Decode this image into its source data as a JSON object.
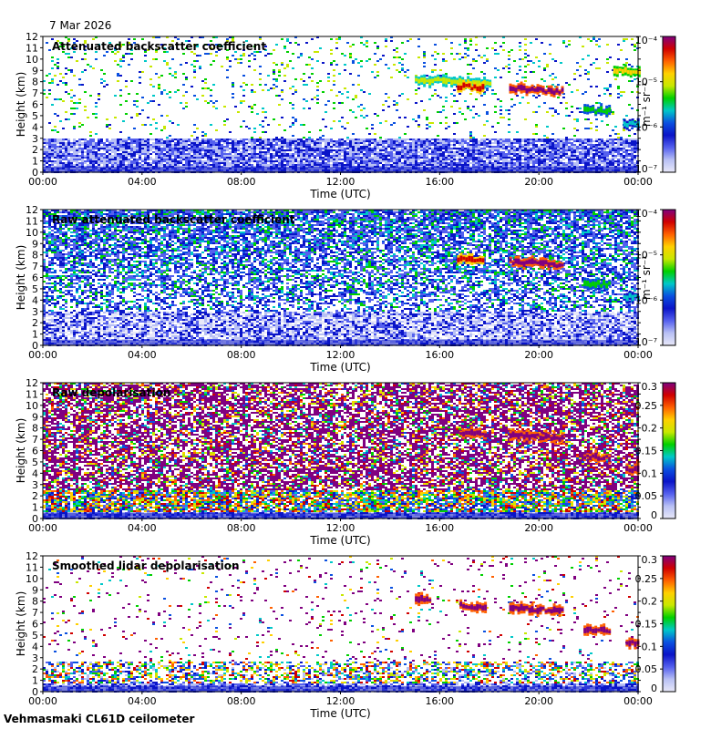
{
  "header": {
    "date": "7 Mar 2026"
  },
  "footer": {
    "instrument": "Vehmasmaki CL61D ceilometer"
  },
  "colors": {
    "jet": [
      "#e8e8f8",
      "#b8c0f4",
      "#5560ee",
      "#0a14c8",
      "#0a50e0",
      "#00c8c8",
      "#00d000",
      "#c8e800",
      "#ffd000",
      "#ff6000",
      "#d00000",
      "#800080"
    ],
    "panel_bg": "#ffffff"
  },
  "chart_data": [
    {
      "type": "heatmap",
      "title": "Attenuated backscatter coefficient",
      "xlabel": "Time (UTC)",
      "ylabel": "Height (km)",
      "xticks": [
        "00:00",
        "04:00",
        "08:00",
        "12:00",
        "16:00",
        "20:00",
        "00:00"
      ],
      "yticks": [
        "0",
        "1",
        "2",
        "3",
        "4",
        "5",
        "6",
        "7",
        "8",
        "9",
        "10",
        "11",
        "12"
      ],
      "ylim": [
        0,
        12
      ],
      "xlim_hours": [
        0,
        24
      ],
      "colorbar": {
        "scale": "log",
        "ticks": [
          "10⁻⁴",
          "10⁻⁵",
          "10⁻⁶",
          "10⁻⁷"
        ],
        "label": "m⁻¹ sr⁻¹",
        "range": [
          1e-07,
          0.0001
        ]
      },
      "noise": "sparse",
      "boundary_layer_top_km": 3.0,
      "cloud_layers": [
        {
          "t_start_h": 15.0,
          "t_end_h": 18.0,
          "h_km": 8.2,
          "value": 1e-05
        },
        {
          "t_start_h": 16.7,
          "t_end_h": 17.8,
          "h_km": 7.6,
          "value": 6e-05
        },
        {
          "t_start_h": 18.8,
          "t_end_h": 21.0,
          "h_km": 7.4,
          "value": 8e-05
        },
        {
          "t_start_h": 21.8,
          "t_end_h": 22.8,
          "h_km": 5.5,
          "value": 4e-06
        },
        {
          "t_start_h": 23.4,
          "t_end_h": 24.0,
          "h_km": 4.3,
          "value": 2e-06
        },
        {
          "t_start_h": 23.0,
          "t_end_h": 24.0,
          "h_km": 9.0,
          "value": 1.5e-05
        }
      ]
    },
    {
      "type": "heatmap",
      "title": "Raw attenuated backscatter coefficient",
      "xlabel": "Time (UTC)",
      "ylabel": "Height (km)",
      "xticks": [
        "00:00",
        "04:00",
        "08:00",
        "12:00",
        "16:00",
        "20:00",
        "00:00"
      ],
      "yticks": [
        "0",
        "1",
        "2",
        "3",
        "4",
        "5",
        "6",
        "7",
        "8",
        "9",
        "10",
        "11",
        "12"
      ],
      "ylim": [
        0,
        12
      ],
      "xlim_hours": [
        0,
        24
      ],
      "colorbar": {
        "scale": "log",
        "ticks": [
          "10⁻⁴",
          "10⁻⁵",
          "10⁻⁶",
          "10⁻⁷"
        ],
        "label": "m⁻¹ sr⁻¹",
        "range": [
          1e-07,
          0.0001
        ]
      },
      "noise": "dense",
      "boundary_layer_top_km": 3.0,
      "cloud_layers": [
        {
          "t_start_h": 16.7,
          "t_end_h": 17.8,
          "h_km": 7.6,
          "value": 6e-05
        },
        {
          "t_start_h": 18.8,
          "t_end_h": 21.0,
          "h_km": 7.4,
          "value": 8e-05
        },
        {
          "t_start_h": 21.8,
          "t_end_h": 22.8,
          "h_km": 5.5,
          "value": 4e-06
        },
        {
          "t_start_h": 23.4,
          "t_end_h": 24.0,
          "h_km": 4.3,
          "value": 2e-06
        }
      ]
    },
    {
      "type": "heatmap",
      "title": "Raw depolarisation",
      "xlabel": "Time (UTC)",
      "ylabel": "Height (km)",
      "xticks": [
        "00:00",
        "04:00",
        "08:00",
        "12:00",
        "16:00",
        "20:00",
        "00:00"
      ],
      "yticks": [
        "0",
        "1",
        "2",
        "3",
        "4",
        "5",
        "6",
        "7",
        "8",
        "9",
        "10",
        "11",
        "12"
      ],
      "ylim": [
        0,
        12
      ],
      "xlim_hours": [
        0,
        24
      ],
      "colorbar": {
        "scale": "linear",
        "ticks": [
          "0.3",
          "0.25",
          "0.2",
          "0.15",
          "0.1",
          "0.05",
          "0"
        ],
        "label": "",
        "range": [
          0,
          0.3
        ]
      },
      "noise": "dense-depol",
      "boundary_layer_top_km": 2.5,
      "cloud_layers": [
        {
          "t_start_h": 16.8,
          "t_end_h": 17.8,
          "h_km": 7.6,
          "value": 0.3
        },
        {
          "t_start_h": 18.8,
          "t_end_h": 21.0,
          "h_km": 7.4,
          "value": 0.3
        },
        {
          "t_start_h": 21.8,
          "t_end_h": 22.8,
          "h_km": 5.5,
          "value": 0.3
        },
        {
          "t_start_h": 23.5,
          "t_end_h": 24.0,
          "h_km": 4.3,
          "value": 0.3
        }
      ]
    },
    {
      "type": "heatmap",
      "title": "Smoothed lidar depolarisation",
      "xlabel": "Time (UTC)",
      "ylabel": "Height (km)",
      "xticks": [
        "00:00",
        "04:00",
        "08:00",
        "12:00",
        "16:00",
        "20:00",
        "00:00"
      ],
      "yticks": [
        "0",
        "1",
        "2",
        "3",
        "4",
        "5",
        "6",
        "7",
        "8",
        "9",
        "10",
        "11",
        "12"
      ],
      "ylim": [
        0,
        12
      ],
      "xlim_hours": [
        0,
        24
      ],
      "colorbar": {
        "scale": "linear",
        "ticks": [
          "0.3",
          "0.25",
          "0.2",
          "0.15",
          "0.1",
          "0.05",
          "0"
        ],
        "label": "",
        "range": [
          0,
          0.3
        ]
      },
      "noise": "sparse-depol",
      "boundary_layer_top_km": 2.8,
      "cloud_layers": [
        {
          "t_start_h": 15.0,
          "t_end_h": 15.6,
          "h_km": 8.3,
          "value": 0.3
        },
        {
          "t_start_h": 16.8,
          "t_end_h": 17.8,
          "h_km": 7.6,
          "value": 0.3
        },
        {
          "t_start_h": 18.8,
          "t_end_h": 21.0,
          "h_km": 7.4,
          "value": 0.3
        },
        {
          "t_start_h": 21.8,
          "t_end_h": 22.8,
          "h_km": 5.5,
          "value": 0.3
        },
        {
          "t_start_h": 23.5,
          "t_end_h": 24.0,
          "h_km": 4.3,
          "value": 0.3
        }
      ]
    }
  ]
}
